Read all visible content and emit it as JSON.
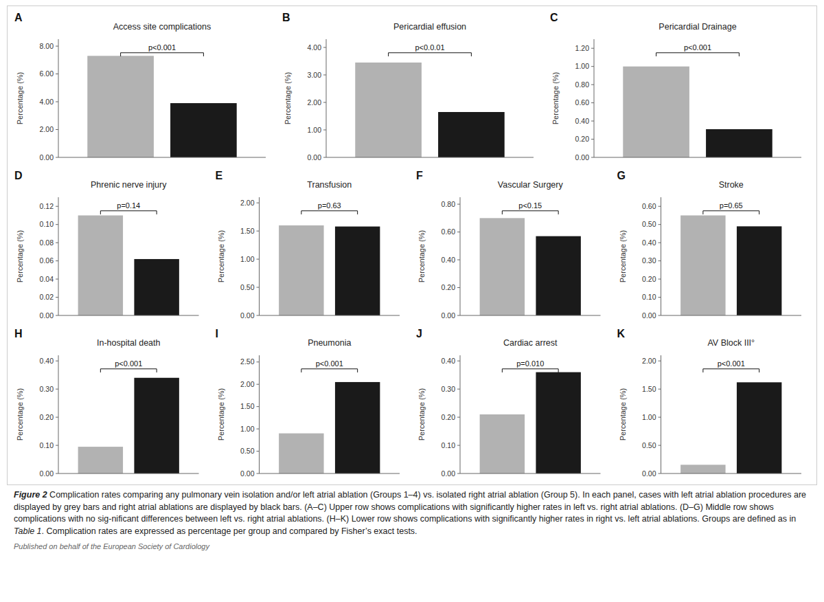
{
  "chart_data": [
    {
      "type": "bar",
      "title": "Access site complications",
      "categories": [
        null,
        null
      ],
      "values": [
        7.3,
        3.9
      ],
      "colors": [
        "#b2b2b2",
        "#1a1a1a"
      ],
      "y_label": "Percentage (%)",
      "ylim": [
        0,
        8.5
      ],
      "yticks": [
        {
          "value": 0.0,
          "label": "0.00"
        },
        {
          "value": 2.0,
          "label": "2.00"
        },
        {
          "value": 4.0,
          "label": "4.00"
        },
        {
          "value": 6.0,
          "label": "6.00"
        },
        {
          "value": 8.0,
          "label": "8.00"
        }
      ],
      "annotations": [
        "A",
        "p<0.001"
      ],
      "grid": false,
      "tick_labels": "y"
    },
    {
      "type": "bar",
      "title": "Pericardial effusion",
      "categories": [
        null,
        null
      ],
      "values": [
        3.45,
        1.65
      ],
      "colors": [
        "#b2b2b2",
        "#1a1a1a"
      ],
      "y_label": "Percentage (%)",
      "ylim": [
        0,
        4.3
      ],
      "yticks": [
        {
          "value": 0.0,
          "label": "0.00"
        },
        {
          "value": 1.0,
          "label": "1.00"
        },
        {
          "value": 2.0,
          "label": "2.00"
        },
        {
          "value": 3.0,
          "label": "3.00"
        },
        {
          "value": 4.0,
          "label": "4.00"
        }
      ],
      "annotations": [
        "B",
        "p<0.0.01"
      ],
      "grid": false,
      "tick_labels": "y"
    },
    {
      "type": "bar",
      "title": "Pericardial Drainage",
      "categories": [
        null,
        null
      ],
      "values": [
        1.0,
        0.31
      ],
      "colors": [
        "#b2b2b2",
        "#1a1a1a"
      ],
      "y_label": "Percentage (%)",
      "ylim": [
        0,
        1.3
      ],
      "yticks": [
        {
          "value": 0.0,
          "label": "0.00"
        },
        {
          "value": 0.2,
          "label": "0.20"
        },
        {
          "value": 0.4,
          "label": "0.40"
        },
        {
          "value": 0.6,
          "label": "0.60"
        },
        {
          "value": 0.8,
          "label": "0.80"
        },
        {
          "value": 1.0,
          "label": "1.00"
        },
        {
          "value": 1.2,
          "label": "1.20"
        }
      ],
      "annotations": [
        "C",
        "p<0.001"
      ],
      "grid": false,
      "tick_labels": "y"
    },
    {
      "type": "bar",
      "title": "Phrenic nerve injury",
      "categories": [
        null,
        null
      ],
      "values": [
        0.11,
        0.062
      ],
      "colors": [
        "#b2b2b2",
        "#1a1a1a"
      ],
      "y_label": "Percentage (%)",
      "ylim": [
        0,
        0.13
      ],
      "yticks": [
        {
          "value": 0.0,
          "label": "0.00"
        },
        {
          "value": 0.02,
          "label": "0.02"
        },
        {
          "value": 0.04,
          "label": "0.04"
        },
        {
          "value": 0.06,
          "label": "0.06"
        },
        {
          "value": 0.08,
          "label": "0.08"
        },
        {
          "value": 0.1,
          "label": "0.10"
        },
        {
          "value": 0.12,
          "label": "0.12"
        }
      ],
      "annotations": [
        "D",
        "p=0.14"
      ],
      "grid": false,
      "tick_labels": "y"
    },
    {
      "type": "bar",
      "title": "Transfusion",
      "categories": [
        null,
        null
      ],
      "values": [
        1.6,
        1.58
      ],
      "colors": [
        "#b2b2b2",
        "#1a1a1a"
      ],
      "y_label": "Percentage (%)",
      "ylim": [
        0,
        2.1
      ],
      "yticks": [
        {
          "value": 0.0,
          "label": "0.00"
        },
        {
          "value": 0.5,
          "label": "0.50"
        },
        {
          "value": 1.0,
          "label": "1.00"
        },
        {
          "value": 1.5,
          "label": "1.50"
        },
        {
          "value": 2.0,
          "label": "2.00"
        }
      ],
      "annotations": [
        "E",
        "p=0.63"
      ],
      "grid": false,
      "tick_labels": "y"
    },
    {
      "type": "bar",
      "title": "Vascular Surgery",
      "categories": [
        null,
        null
      ],
      "values": [
        0.7,
        0.57
      ],
      "colors": [
        "#b2b2b2",
        "#1a1a1a"
      ],
      "y_label": "Percentage (%)",
      "ylim": [
        0,
        0.85
      ],
      "yticks": [
        {
          "value": 0.0,
          "label": "0.00"
        },
        {
          "value": 0.2,
          "label": "0.20"
        },
        {
          "value": 0.4,
          "label": "0.40"
        },
        {
          "value": 0.6,
          "label": "0.60"
        },
        {
          "value": 0.8,
          "label": "0.80"
        }
      ],
      "annotations": [
        "F",
        "p<0.15"
      ],
      "grid": false,
      "tick_labels": "y"
    },
    {
      "type": "bar",
      "title": "Stroke",
      "categories": [
        null,
        null
      ],
      "values": [
        0.55,
        0.49
      ],
      "colors": [
        "#b2b2b2",
        "#1a1a1a"
      ],
      "y_label": "Percentage (%)",
      "ylim": [
        0,
        0.65
      ],
      "yticks": [
        {
          "value": 0.0,
          "label": "0.00"
        },
        {
          "value": 0.1,
          "label": "0.10"
        },
        {
          "value": 0.2,
          "label": "0.20"
        },
        {
          "value": 0.3,
          "label": "0.30"
        },
        {
          "value": 0.4,
          "label": "0.40"
        },
        {
          "value": 0.5,
          "label": "0.50"
        },
        {
          "value": 0.6,
          "label": "0.60"
        }
      ],
      "annotations": [
        "G",
        "p=0.65"
      ],
      "grid": false,
      "tick_labels": "y"
    },
    {
      "type": "bar",
      "title": "In-hospital death",
      "categories": [
        null,
        null
      ],
      "values": [
        0.095,
        0.34
      ],
      "colors": [
        "#b2b2b2",
        "#1a1a1a"
      ],
      "y_label": "Percentage (%)",
      "ylim": [
        0,
        0.42
      ],
      "yticks": [
        {
          "value": 0.0,
          "label": "0.00"
        },
        {
          "value": 0.1,
          "label": "0.10"
        },
        {
          "value": 0.2,
          "label": "0.20"
        },
        {
          "value": 0.3,
          "label": "0.30"
        },
        {
          "value": 0.4,
          "label": "0.40"
        }
      ],
      "annotations": [
        "H",
        "p<0.001"
      ],
      "grid": false,
      "tick_labels": "y"
    },
    {
      "type": "bar",
      "title": "Pneumonia",
      "categories": [
        null,
        null
      ],
      "values": [
        0.9,
        2.05
      ],
      "colors": [
        "#b2b2b2",
        "#1a1a1a"
      ],
      "y_label": "Percentage (%)",
      "ylim": [
        0,
        2.65
      ],
      "yticks": [
        {
          "value": 0.0,
          "label": "0.00"
        },
        {
          "value": 0.5,
          "label": "0.50"
        },
        {
          "value": 1.0,
          "label": "1.00"
        },
        {
          "value": 1.5,
          "label": "1.50"
        },
        {
          "value": 2.0,
          "label": "2.00"
        },
        {
          "value": 2.5,
          "label": "2.50"
        }
      ],
      "annotations": [
        "I",
        "p<0.001"
      ],
      "grid": false,
      "tick_labels": "y"
    },
    {
      "type": "bar",
      "title": "Cardiac arrest",
      "categories": [
        null,
        null
      ],
      "values": [
        0.21,
        0.36
      ],
      "colors": [
        "#b2b2b2",
        "#1a1a1a"
      ],
      "y_label": "Percentage (%)",
      "ylim": [
        0,
        0.42
      ],
      "yticks": [
        {
          "value": 0.0,
          "label": "0.00"
        },
        {
          "value": 0.1,
          "label": "0.10"
        },
        {
          "value": 0.2,
          "label": "0.20"
        },
        {
          "value": 0.3,
          "label": "0.30"
        },
        {
          "value": 0.4,
          "label": "0.40"
        }
      ],
      "annotations": [
        "J",
        "p=0.010"
      ],
      "grid": false,
      "tick_labels": "y"
    },
    {
      "type": "bar",
      "title": "AV Block III°",
      "categories": [
        null,
        null
      ],
      "values": [
        0.155,
        1.62
      ],
      "colors": [
        "#b2b2b2",
        "#1a1a1a"
      ],
      "y_label": "Percentage (%)",
      "ylim": [
        0,
        2.1
      ],
      "yticks": [
        {
          "value": 0.0,
          "label": "0.00"
        },
        {
          "value": 0.5,
          "label": "0.50"
        },
        {
          "value": 1.0,
          "label": "1.00"
        },
        {
          "value": 1.5,
          "label": "1.50"
        },
        {
          "value": 2.0,
          "label": "2.00"
        }
      ],
      "annotations": [
        "K",
        "p<0.001"
      ],
      "grid": false,
      "tick_labels": "y"
    }
  ],
  "annotations": [
    "Figure 2",
    "  Complication rates comparing any pulmonary vein isolation and/or left atrial ablation (Groups 1–4) vs. isolated right atrial ablation (Group 5). In each panel, cases with left atrial ablation procedures are displayed by grey bars and right atrial ablations are displayed by black bars. (A–C) Upper row shows complications with significantly higher rates in left vs. right atrial ablations. (D–G) Middle row shows complications with no sig-nificant differences between left vs. right atrial ablations. (H–K) Lower row shows complications with significantly higher rates in right vs. left atrial\nablations. Groups are defined as in ",
    "Table 1",
    ". Complication rates are expressed as percentage per group and compared by Fisher’s exact tests.",
    "Published on behalf of the European Society of Cardiology"
  ]
}
